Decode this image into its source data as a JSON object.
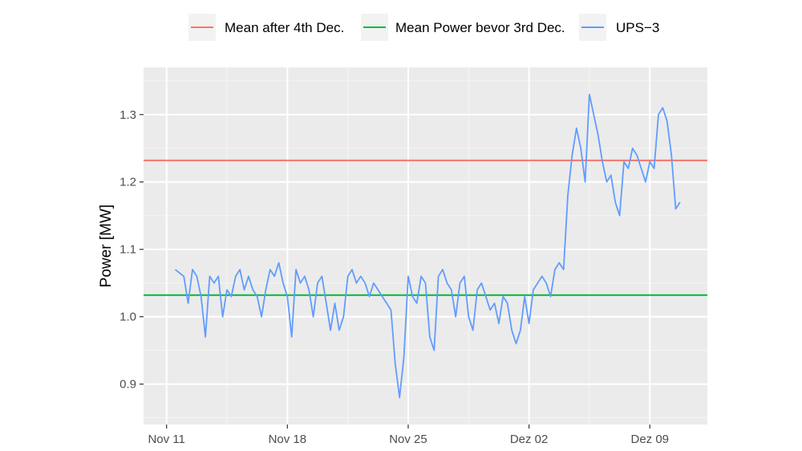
{
  "chart_data": {
    "type": "line",
    "title": "",
    "xlabel": "",
    "ylabel": "Power [MW]",
    "x_axis": {
      "kind": "date",
      "range": [
        "2019-11-09T16:00",
        "2019-12-12T08:00"
      ],
      "ticks": [
        {
          "date": "2019-11-11",
          "label": "Nov 11"
        },
        {
          "date": "2019-11-18",
          "label": "Nov 18"
        },
        {
          "date": "2019-11-25",
          "label": "Nov 25"
        },
        {
          "date": "2019-12-02",
          "label": "Dez 02"
        },
        {
          "date": "2019-12-09",
          "label": "Dez 09"
        }
      ],
      "minor_ticks": [
        "2019-11-14T12:00",
        "2019-11-21T12:00",
        "2019-11-28T12:00",
        "2019-12-05T12:00"
      ]
    },
    "y_axis": {
      "range": [
        0.84,
        1.37
      ],
      "ticks": [
        {
          "value": 0.9,
          "label": "0.9"
        },
        {
          "value": 1.0,
          "label": "1.0"
        },
        {
          "value": 1.1,
          "label": "1.1"
        },
        {
          "value": 1.2,
          "label": "1.2"
        },
        {
          "value": 1.3,
          "label": "1.3"
        }
      ],
      "minor_ticks": [
        0.85,
        0.95,
        1.05,
        1.15,
        1.25,
        1.35
      ]
    },
    "grid": true,
    "legend_position": "top",
    "series": [
      {
        "name": "Mean after 4th Dec.",
        "kind": "hline",
        "value": 1.232,
        "color": "#F8766D"
      },
      {
        "name": "Mean Power bevor 3rd Dec.",
        "kind": "hline",
        "value": 1.032,
        "color": "#00BA38"
      },
      {
        "name": "UPS−3",
        "kind": "line",
        "color": "#619CFF",
        "points": [
          [
            "2019-11-11T12:00",
            1.07
          ],
          [
            "2019-11-11T18:00",
            1.065
          ],
          [
            "2019-11-12T00:00",
            1.06
          ],
          [
            "2019-11-12T06:00",
            1.02
          ],
          [
            "2019-11-12T12:00",
            1.07
          ],
          [
            "2019-11-12T18:00",
            1.06
          ],
          [
            "2019-11-13T00:00",
            1.03
          ],
          [
            "2019-11-13T06:00",
            0.97
          ],
          [
            "2019-11-13T12:00",
            1.06
          ],
          [
            "2019-11-13T18:00",
            1.05
          ],
          [
            "2019-11-14T00:00",
            1.06
          ],
          [
            "2019-11-14T06:00",
            1.0
          ],
          [
            "2019-11-14T12:00",
            1.04
          ],
          [
            "2019-11-14T18:00",
            1.03
          ],
          [
            "2019-11-15T00:00",
            1.06
          ],
          [
            "2019-11-15T06:00",
            1.07
          ],
          [
            "2019-11-15T12:00",
            1.04
          ],
          [
            "2019-11-15T18:00",
            1.06
          ],
          [
            "2019-11-16T00:00",
            1.04
          ],
          [
            "2019-11-16T06:00",
            1.03
          ],
          [
            "2019-11-16T12:00",
            1.0
          ],
          [
            "2019-11-16T18:00",
            1.04
          ],
          [
            "2019-11-17T00:00",
            1.07
          ],
          [
            "2019-11-17T06:00",
            1.06
          ],
          [
            "2019-11-17T12:00",
            1.08
          ],
          [
            "2019-11-17T18:00",
            1.05
          ],
          [
            "2019-11-18T00:00",
            1.03
          ],
          [
            "2019-11-18T06:00",
            0.97
          ],
          [
            "2019-11-18T12:00",
            1.07
          ],
          [
            "2019-11-18T18:00",
            1.05
          ],
          [
            "2019-11-19T00:00",
            1.06
          ],
          [
            "2019-11-19T06:00",
            1.04
          ],
          [
            "2019-11-19T12:00",
            1.0
          ],
          [
            "2019-11-19T18:00",
            1.05
          ],
          [
            "2019-11-20T00:00",
            1.06
          ],
          [
            "2019-11-20T06:00",
            1.02
          ],
          [
            "2019-11-20T12:00",
            0.98
          ],
          [
            "2019-11-20T18:00",
            1.02
          ],
          [
            "2019-11-21T00:00",
            0.98
          ],
          [
            "2019-11-21T06:00",
            1.0
          ],
          [
            "2019-11-21T12:00",
            1.06
          ],
          [
            "2019-11-21T18:00",
            1.07
          ],
          [
            "2019-11-22T00:00",
            1.05
          ],
          [
            "2019-11-22T06:00",
            1.06
          ],
          [
            "2019-11-22T12:00",
            1.05
          ],
          [
            "2019-11-22T18:00",
            1.03
          ],
          [
            "2019-11-23T00:00",
            1.05
          ],
          [
            "2019-11-23T06:00",
            1.04
          ],
          [
            "2019-11-23T12:00",
            1.03
          ],
          [
            "2019-11-23T18:00",
            1.02
          ],
          [
            "2019-11-24T00:00",
            1.01
          ],
          [
            "2019-11-24T06:00",
            0.93
          ],
          [
            "2019-11-24T12:00",
            0.88
          ],
          [
            "2019-11-24T18:00",
            0.94
          ],
          [
            "2019-11-25T00:00",
            1.06
          ],
          [
            "2019-11-25T06:00",
            1.03
          ],
          [
            "2019-11-25T12:00",
            1.02
          ],
          [
            "2019-11-25T18:00",
            1.06
          ],
          [
            "2019-11-26T00:00",
            1.05
          ],
          [
            "2019-11-26T06:00",
            0.97
          ],
          [
            "2019-11-26T12:00",
            0.95
          ],
          [
            "2019-11-26T18:00",
            1.06
          ],
          [
            "2019-11-27T00:00",
            1.07
          ],
          [
            "2019-11-27T06:00",
            1.05
          ],
          [
            "2019-11-27T12:00",
            1.04
          ],
          [
            "2019-11-27T18:00",
            1.0
          ],
          [
            "2019-11-28T00:00",
            1.05
          ],
          [
            "2019-11-28T06:00",
            1.06
          ],
          [
            "2019-11-28T12:00",
            1.0
          ],
          [
            "2019-11-28T18:00",
            0.98
          ],
          [
            "2019-11-29T00:00",
            1.04
          ],
          [
            "2019-11-29T06:00",
            1.05
          ],
          [
            "2019-11-29T12:00",
            1.03
          ],
          [
            "2019-11-29T18:00",
            1.01
          ],
          [
            "2019-11-30T00:00",
            1.02
          ],
          [
            "2019-11-30T06:00",
            0.99
          ],
          [
            "2019-11-30T12:00",
            1.03
          ],
          [
            "2019-11-30T18:00",
            1.02
          ],
          [
            "2019-12-01T00:00",
            0.98
          ],
          [
            "2019-12-01T06:00",
            0.96
          ],
          [
            "2019-12-01T12:00",
            0.98
          ],
          [
            "2019-12-01T18:00",
            1.03
          ],
          [
            "2019-12-02T00:00",
            0.99
          ],
          [
            "2019-12-02T06:00",
            1.04
          ],
          [
            "2019-12-02T12:00",
            1.05
          ],
          [
            "2019-12-02T18:00",
            1.06
          ],
          [
            "2019-12-03T00:00",
            1.05
          ],
          [
            "2019-12-03T06:00",
            1.03
          ],
          [
            "2019-12-03T12:00",
            1.07
          ],
          [
            "2019-12-03T18:00",
            1.08
          ],
          [
            "2019-12-04T00:00",
            1.07
          ],
          [
            "2019-12-04T06:00",
            1.18
          ],
          [
            "2019-12-04T12:00",
            1.24
          ],
          [
            "2019-12-04T18:00",
            1.28
          ],
          [
            "2019-12-05T00:00",
            1.25
          ],
          [
            "2019-12-05T06:00",
            1.2
          ],
          [
            "2019-12-05T12:00",
            1.33
          ],
          [
            "2019-12-05T18:00",
            1.3
          ],
          [
            "2019-12-06T00:00",
            1.27
          ],
          [
            "2019-12-06T06:00",
            1.23
          ],
          [
            "2019-12-06T12:00",
            1.2
          ],
          [
            "2019-12-06T18:00",
            1.21
          ],
          [
            "2019-12-07T00:00",
            1.17
          ],
          [
            "2019-12-07T06:00",
            1.15
          ],
          [
            "2019-12-07T12:00",
            1.23
          ],
          [
            "2019-12-07T18:00",
            1.22
          ],
          [
            "2019-12-08T00:00",
            1.25
          ],
          [
            "2019-12-08T06:00",
            1.24
          ],
          [
            "2019-12-08T12:00",
            1.22
          ],
          [
            "2019-12-08T18:00",
            1.2
          ],
          [
            "2019-12-09T00:00",
            1.23
          ],
          [
            "2019-12-09T06:00",
            1.22
          ],
          [
            "2019-12-09T12:00",
            1.3
          ],
          [
            "2019-12-09T18:00",
            1.31
          ],
          [
            "2019-12-10T00:00",
            1.29
          ],
          [
            "2019-12-10T06:00",
            1.24
          ],
          [
            "2019-12-10T12:00",
            1.16
          ],
          [
            "2019-12-10T18:00",
            1.17
          ]
        ]
      }
    ]
  }
}
